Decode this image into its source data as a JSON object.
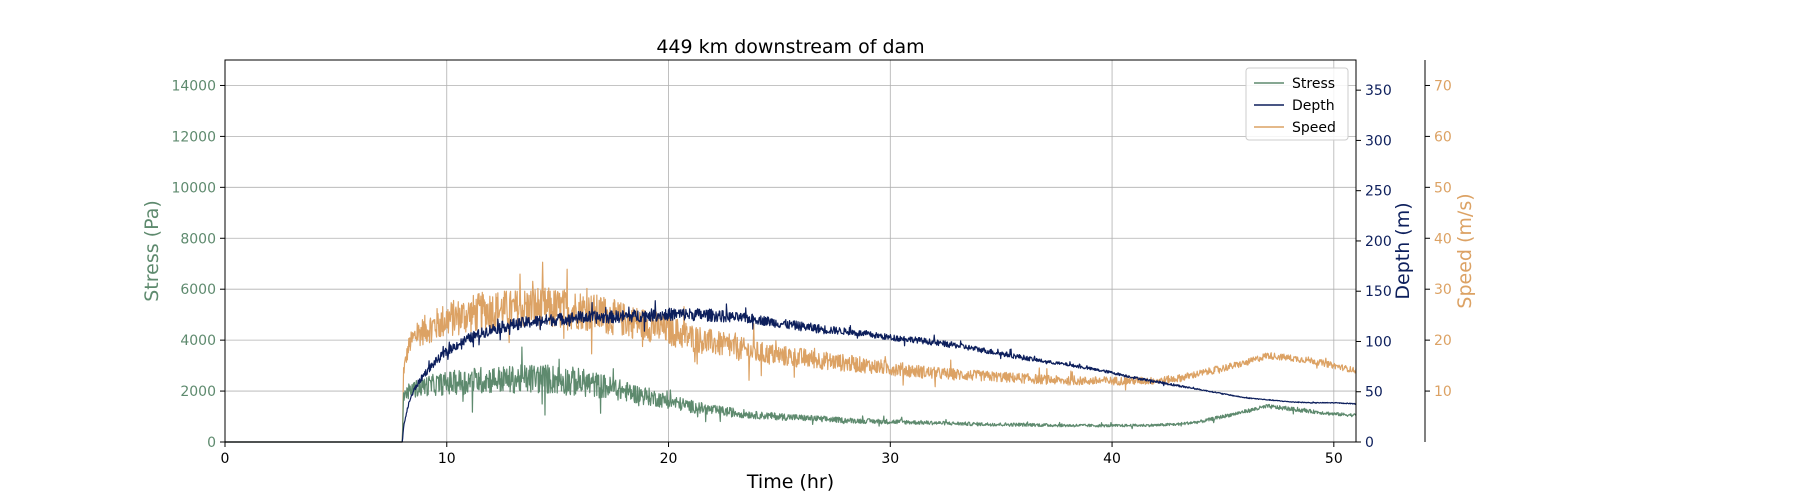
{
  "chart_data": {
    "type": "line",
    "title": "449 km downstream of dam",
    "xlabel": "Time (hr)",
    "xlim": [
      0,
      51
    ],
    "x_ticks": [
      0,
      10,
      20,
      30,
      40,
      50
    ],
    "grid": true,
    "legend_position": "top-right",
    "axes": {
      "stress": {
        "label": "Stress (Pa)",
        "color": "#5e8a6e",
        "ylim": [
          0,
          15000
        ],
        "ticks": [
          0,
          2000,
          4000,
          6000,
          8000,
          10000,
          12000,
          14000
        ],
        "side": "left"
      },
      "depth": {
        "label": "Depth (m)",
        "color": "#0d1f5c",
        "ylim": [
          0,
          380
        ],
        "ticks": [
          0,
          50,
          100,
          150,
          200,
          250,
          300,
          350
        ],
        "side": "right"
      },
      "speed": {
        "label": "Speed (m/s)",
        "color": "#dca264",
        "ylim": [
          0,
          75
        ],
        "ticks": [
          10,
          20,
          30,
          40,
          50,
          60,
          70
        ],
        "side": "right-outer"
      }
    },
    "series": [
      {
        "name": "Stress",
        "axis": "stress",
        "color": "#5e8a6e",
        "x": [
          0,
          8,
          8.05,
          8.3,
          9,
          10,
          11,
          12,
          13,
          14,
          15,
          16,
          17,
          18,
          19,
          20,
          21,
          22,
          23,
          24,
          25,
          26,
          27,
          28,
          29,
          30,
          32,
          34,
          36,
          38,
          40,
          42,
          43,
          44,
          45,
          46,
          47,
          48,
          49,
          50,
          51
        ],
        "y": [
          0,
          0,
          1800,
          2000,
          2200,
          2300,
          2400,
          2450,
          2450,
          2500,
          2450,
          2350,
          2200,
          2000,
          1800,
          1600,
          1400,
          1250,
          1150,
          1050,
          1000,
          950,
          900,
          850,
          820,
          800,
          750,
          700,
          680,
          650,
          640,
          660,
          700,
          800,
          1000,
          1200,
          1400,
          1300,
          1200,
          1100,
          1050
        ],
        "noise": [
          0,
          0,
          0.1,
          0.15,
          0.18,
          0.2,
          0.22,
          0.22,
          0.22,
          0.24,
          0.24,
          0.24,
          0.22,
          0.2,
          0.2,
          0.18,
          0.18,
          0.16,
          0.16,
          0.14,
          0.14,
          0.13,
          0.13,
          0.12,
          0.12,
          0.12,
          0.1,
          0.1,
          0.1,
          0.09,
          0.08,
          0.08,
          0.08,
          0.08,
          0.07,
          0.06,
          0.06,
          0.06,
          0.06,
          0.06,
          0.06
        ]
      },
      {
        "name": "Depth",
        "axis": "depth",
        "color": "#0d1f5c",
        "x": [
          0,
          8,
          8.05,
          8.3,
          8.6,
          9,
          9.5,
          10,
          10.5,
          11,
          12,
          13,
          14,
          15,
          16,
          17,
          18,
          19,
          20,
          21,
          22,
          23,
          24,
          25,
          26,
          27,
          28,
          29,
          30,
          31,
          32,
          33,
          34,
          35,
          36,
          37,
          38,
          39,
          40,
          41,
          42,
          43,
          44,
          45,
          46,
          47,
          48,
          49,
          50,
          51
        ],
        "y": [
          0,
          0,
          15,
          40,
          55,
          68,
          80,
          90,
          97,
          103,
          112,
          117,
          120,
          122,
          124,
          124,
          125,
          126,
          127,
          127,
          126,
          124,
          122,
          118,
          115,
          112,
          110,
          107,
          104,
          102,
          99,
          96,
          92,
          88,
          84,
          80,
          77,
          73,
          69,
          64,
          60,
          56,
          52,
          48,
          44,
          42,
          40,
          39,
          39,
          38
        ],
        "noise": [
          0,
          0,
          0.04,
          0.05,
          0.05,
          0.05,
          0.05,
          0.05,
          0.05,
          0.05,
          0.05,
          0.05,
          0.05,
          0.05,
          0.05,
          0.05,
          0.05,
          0.05,
          0.05,
          0.05,
          0.05,
          0.04,
          0.04,
          0.04,
          0.04,
          0.04,
          0.03,
          0.03,
          0.03,
          0.03,
          0.03,
          0.03,
          0.03,
          0.03,
          0.03,
          0.02,
          0.02,
          0.02,
          0.02,
          0.02,
          0.02,
          0.02,
          0.01,
          0.01,
          0.01,
          0.01,
          0.01,
          0.01,
          0.01,
          0.01
        ]
      },
      {
        "name": "Speed",
        "axis": "speed",
        "color": "#dca264",
        "x": [
          0,
          8,
          8.05,
          8.3,
          8.6,
          9,
          9.5,
          10,
          11,
          12,
          13,
          14,
          15,
          16,
          17,
          18,
          19,
          20,
          21,
          22,
          23,
          24,
          25,
          26,
          27,
          28,
          29,
          30,
          32,
          34,
          36,
          38,
          40,
          42,
          43,
          44,
          45,
          46,
          47,
          48,
          49,
          50,
          51
        ],
        "y": [
          0,
          0,
          14,
          19,
          21,
          22,
          23,
          24,
          25,
          26,
          26,
          26.5,
          26,
          26,
          25,
          24,
          23,
          22,
          20.5,
          19.5,
          18.5,
          17.5,
          17,
          16.5,
          16,
          15.5,
          15,
          14.5,
          13.5,
          13,
          12.5,
          12,
          12,
          12,
          12.5,
          13.5,
          14.5,
          15.5,
          17,
          16.5,
          16,
          15,
          14
        ],
        "noise": [
          0,
          0,
          0.1,
          0.1,
          0.12,
          0.13,
          0.14,
          0.15,
          0.15,
          0.15,
          0.15,
          0.16,
          0.16,
          0.15,
          0.15,
          0.14,
          0.14,
          0.14,
          0.14,
          0.13,
          0.13,
          0.13,
          0.12,
          0.12,
          0.11,
          0.11,
          0.1,
          0.1,
          0.09,
          0.08,
          0.08,
          0.07,
          0.07,
          0.06,
          0.06,
          0.05,
          0.05,
          0.04,
          0.04,
          0.04,
          0.04,
          0.04,
          0.04
        ]
      }
    ]
  }
}
